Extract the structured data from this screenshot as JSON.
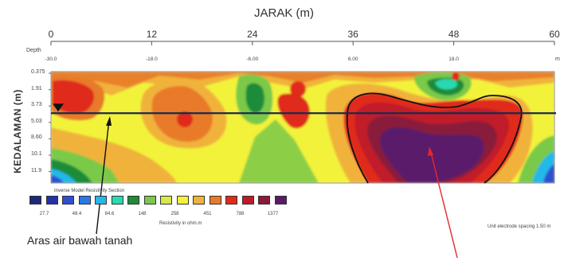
{
  "chart_data": {
    "type": "heatmap",
    "title": "",
    "xlabel": "JARAK (m)",
    "ylabel": "KEDALAMAN (m)",
    "x_ticks": [
      "0",
      "12",
      "24",
      "36",
      "48",
      "60"
    ],
    "xlim": [
      0,
      60
    ],
    "depth_axis_label": "Depth",
    "depth_ticks": [
      "-30.0",
      "-18.0",
      "-6.00",
      "6.00",
      "18.0"
    ],
    "depth_unit": "m",
    "y_ticks": [
      "0.375",
      "1.91",
      "3.73",
      "5.03",
      "8.60",
      "10.1",
      "11.9"
    ],
    "legend": {
      "title": "Inverse Model Resistivity Section",
      "colors": [
        "#1c2a7a",
        "#2432a8",
        "#2f4fd0",
        "#2a78e8",
        "#23b8e8",
        "#2bd9b0",
        "#1e8c3a",
        "#7ac94a",
        "#d8e84a",
        "#f2f23a",
        "#f0b23a",
        "#e87a2a",
        "#e02a1a",
        "#c01a2a",
        "#8a1a3a",
        "#5a1a6a"
      ],
      "values": [
        "27.7",
        "48.4",
        "84.6",
        "148",
        "258",
        "451",
        "788",
        "1377"
      ],
      "unit_label": "Resistivity in ohm.m"
    },
    "electrode_spacing": "Unit electrode spacing 1.50 m",
    "water_table_depth_m": 4.3,
    "annotation": "Aras air bawah tanah"
  }
}
